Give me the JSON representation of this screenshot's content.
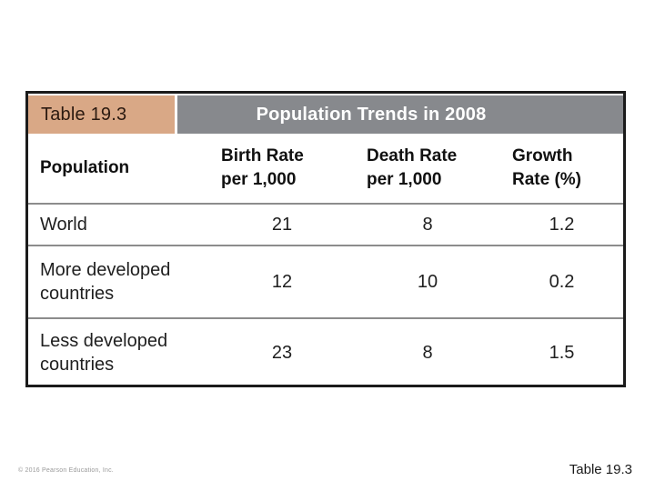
{
  "table": {
    "label": "Table 19.3",
    "title": "Population Trends in 2008",
    "columns": [
      "Population",
      "Birth Rate\nper 1,000",
      "Death Rate\nper 1,000",
      "Growth\nRate (%)"
    ],
    "rows": [
      {
        "population": "World",
        "birth_rate": "21",
        "death_rate": "8",
        "growth_rate": "1.2"
      },
      {
        "population": "More developed countries",
        "birth_rate": "12",
        "death_rate": "10",
        "growth_rate": "0.2"
      },
      {
        "population": "Less developed countries",
        "birth_rate": "23",
        "death_rate": "8",
        "growth_rate": "1.5"
      }
    ]
  },
  "footer": {
    "copyright": "© 2016 Pearson Education, Inc.",
    "caption": "Table 19.3"
  },
  "colors": {
    "label_cell_tan": "#d9a886",
    "title_band_gray": "#87898d",
    "frame_border": "#1b1b1b",
    "row_separator": "#8c8c8c",
    "title_text": "#ffffff"
  },
  "chart_data": {
    "type": "table",
    "title": "Population Trends in 2008",
    "categories": [
      "World",
      "More developed countries",
      "Less developed countries"
    ],
    "series": [
      {
        "name": "Birth Rate per 1,000",
        "values": [
          21,
          12,
          23
        ]
      },
      {
        "name": "Death Rate per 1,000",
        "values": [
          8,
          10,
          8
        ]
      },
      {
        "name": "Growth Rate (%)",
        "values": [
          1.2,
          0.2,
          1.5
        ]
      }
    ]
  }
}
